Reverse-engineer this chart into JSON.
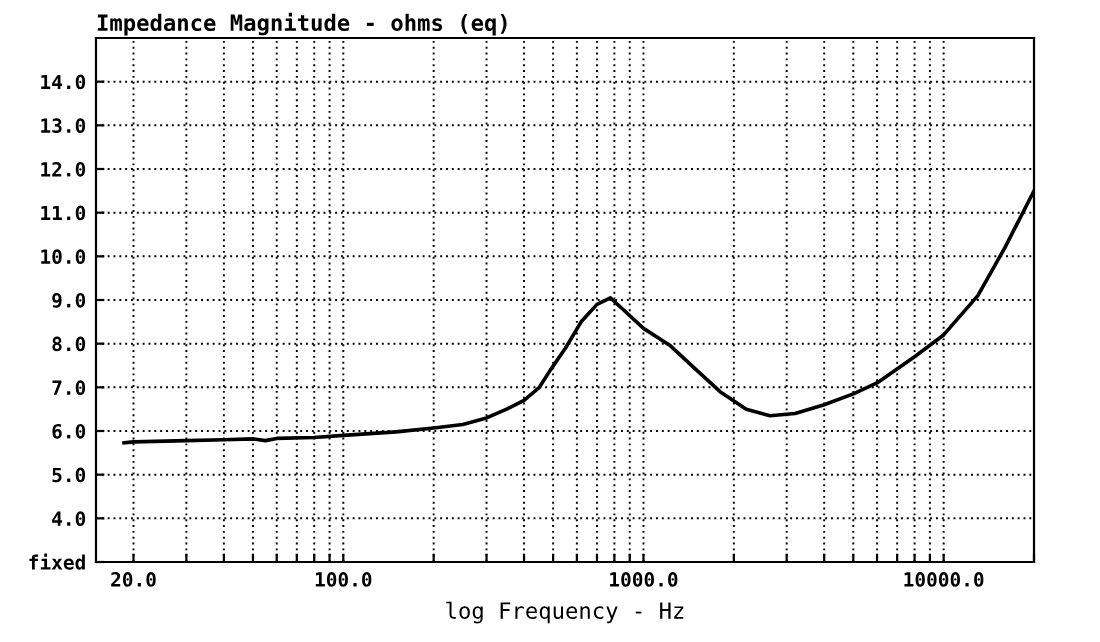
{
  "chart_data": {
    "type": "line",
    "title": "Impedance Magnitude - ohms (eq)",
    "xlabel": "log Frequency - Hz",
    "log": "x",
    "x": [
      18.6,
      20,
      30,
      40,
      50,
      55,
      60,
      80,
      100,
      150,
      200,
      250,
      300,
      350,
      400,
      450,
      490,
      550,
      620,
      700,
      776,
      850,
      1000,
      1230,
      1500,
      1800,
      2200,
      2640,
      3200,
      4000,
      5000,
      6000,
      8000,
      10000,
      13000,
      16000,
      20000
    ],
    "series": [
      {
        "color": "#000000",
        "values": [
          5.73,
          5.75,
          5.78,
          5.8,
          5.82,
          5.78,
          5.83,
          5.85,
          5.9,
          5.98,
          6.07,
          6.15,
          6.3,
          6.5,
          6.7,
          7.0,
          7.4,
          7.9,
          8.5,
          8.9,
          9.05,
          8.8,
          8.35,
          7.95,
          7.4,
          6.9,
          6.5,
          6.35,
          6.4,
          6.6,
          6.85,
          7.1,
          7.7,
          8.2,
          9.1,
          10.2,
          11.5
        ]
      }
    ],
    "xlim": [
      15,
      20000
    ],
    "ylim": [
      3,
      15
    ],
    "xticks": [
      {
        "value": 20,
        "label": "20.0"
      },
      {
        "value": 30,
        "label": null
      },
      {
        "value": 40,
        "label": null
      },
      {
        "value": 50,
        "label": null
      },
      {
        "value": 60,
        "label": null
      },
      {
        "value": 70,
        "label": null
      },
      {
        "value": 80,
        "label": null
      },
      {
        "value": 90,
        "label": null
      },
      {
        "value": 100,
        "label": "100.0"
      },
      {
        "value": 200,
        "label": null
      },
      {
        "value": 300,
        "label": null
      },
      {
        "value": 400,
        "label": null
      },
      {
        "value": 500,
        "label": null
      },
      {
        "value": 600,
        "label": null
      },
      {
        "value": 700,
        "label": null
      },
      {
        "value": 800,
        "label": null
      },
      {
        "value": 900,
        "label": null
      },
      {
        "value": 1000,
        "label": "1000.0"
      },
      {
        "value": 2000,
        "label": null
      },
      {
        "value": 3000,
        "label": null
      },
      {
        "value": 4000,
        "label": null
      },
      {
        "value": 5000,
        "label": null
      },
      {
        "value": 6000,
        "label": null
      },
      {
        "value": 7000,
        "label": null
      },
      {
        "value": 8000,
        "label": null
      },
      {
        "value": 9000,
        "label": null
      },
      {
        "value": 10000,
        "label": "10000.0"
      },
      {
        "value": 20000,
        "label": null
      }
    ],
    "yticks": [
      {
        "value": 3,
        "label": "fixed"
      },
      {
        "value": 4,
        "label": "4.0"
      },
      {
        "value": 5,
        "label": "5.0"
      },
      {
        "value": 6,
        "label": "6.0"
      },
      {
        "value": 7,
        "label": "7.0"
      },
      {
        "value": 8,
        "label": "8.0"
      },
      {
        "value": 9,
        "label": "9.0"
      },
      {
        "value": 10,
        "label": "10.0"
      },
      {
        "value": 11,
        "label": "11.0"
      },
      {
        "value": 12,
        "label": "12.0"
      },
      {
        "value": 13,
        "label": "13.0"
      },
      {
        "value": 14,
        "label": "14.0"
      }
    ],
    "grid": true,
    "line_style": "solid"
  }
}
